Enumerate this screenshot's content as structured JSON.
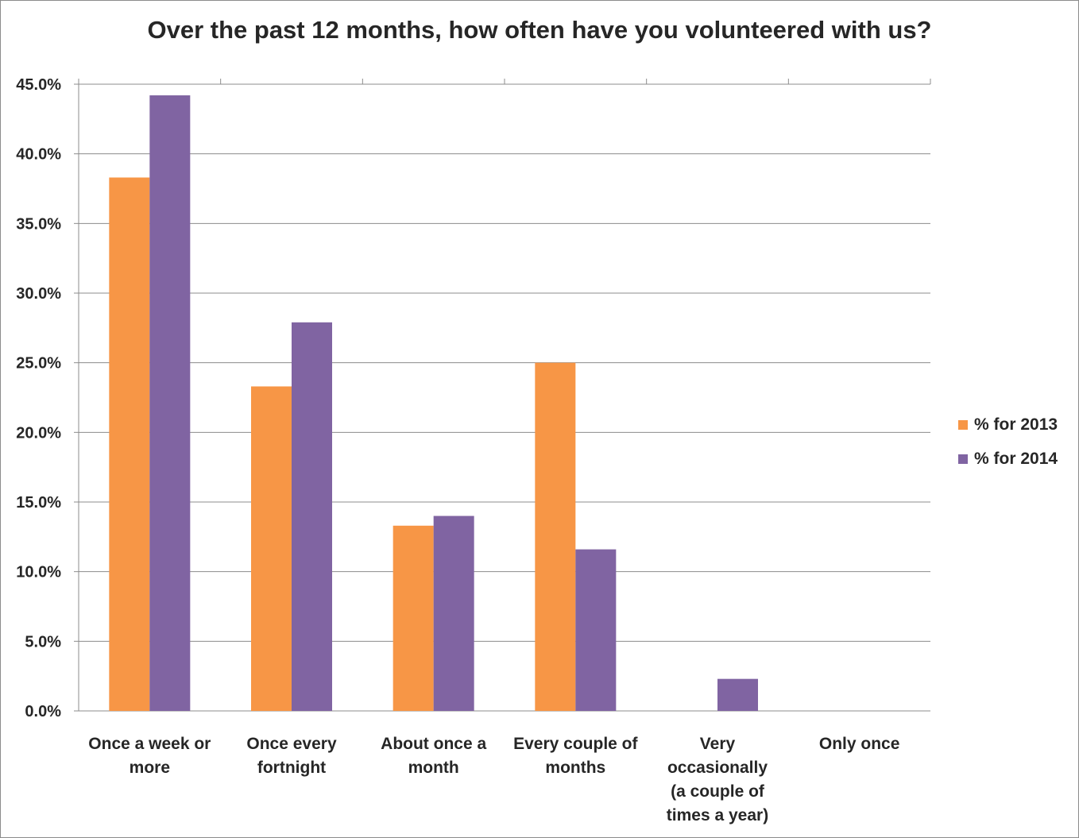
{
  "chart_data": {
    "type": "bar",
    "title": "Over the past 12 months, how often have you volunteered with us?",
    "categories": [
      [
        "Once a week or",
        "more"
      ],
      [
        "Once every",
        "fortnight"
      ],
      [
        "About once a",
        "month"
      ],
      [
        "Every couple of",
        "months"
      ],
      [
        "Very",
        "occasionally",
        "(a couple of",
        "times a year)"
      ],
      [
        "Only once"
      ]
    ],
    "series": [
      {
        "name": "% for 2013",
        "color": "#F79646",
        "values": [
          38.3,
          23.3,
          13.3,
          25.0,
          0.0,
          0.0
        ]
      },
      {
        "name": "% for 2014",
        "color": "#8064A2",
        "values": [
          44.2,
          27.9,
          14.0,
          11.6,
          2.3,
          0.0
        ]
      }
    ],
    "ylim": [
      0,
      45
    ],
    "yticks": [
      "0.0%",
      "5.0%",
      "10.0%",
      "15.0%",
      "20.0%",
      "25.0%",
      "30.0%",
      "35.0%",
      "40.0%",
      "45.0%"
    ],
    "grid": true,
    "legend": "right"
  }
}
